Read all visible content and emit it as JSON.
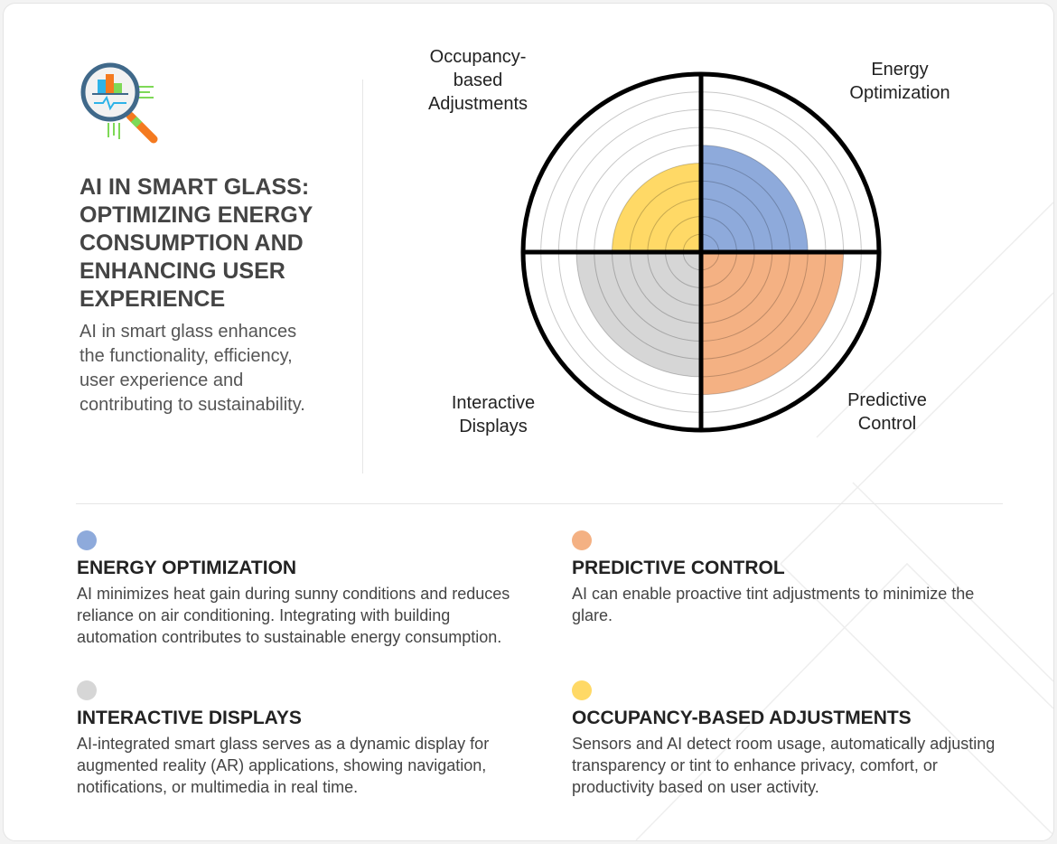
{
  "header": {
    "icon": "magnifier-chart-icon",
    "title": "AI IN SMART GLASS: OPTIMIZING ENERGY CONSUMPTION AND ENHANCING USER EXPERIENCE",
    "intro": "AI in smart glass enhances the functionality, efficiency, user experience and contributing to sustainability."
  },
  "chart_data": {
    "type": "polar-area",
    "rmax": 10,
    "rings": 10,
    "grid": true,
    "categories": [
      "Energy Optimization",
      "Predictive Control",
      "Interactive Displays",
      "Occupancy-based Adjustments"
    ],
    "values": [
      6,
      8,
      7,
      5
    ],
    "colors": [
      "#8eaadb",
      "#f4b183",
      "#d6d6d6",
      "#ffd966"
    ],
    "labels": {
      "energy": [
        "Energy",
        "Optimization"
      ],
      "predictive": [
        "Predictive",
        "Control"
      ],
      "interactive": [
        "Interactive",
        "Displays"
      ],
      "occupancy": [
        "Occupancy-",
        "based",
        "Adjustments"
      ]
    }
  },
  "items": [
    {
      "color": "#8eaadb",
      "title": "ENERGY OPTIMIZATION",
      "text": "AI minimizes heat gain during sunny conditions and reduces reliance on air conditioning. Integrating with building automation contributes to sustainable energy consumption."
    },
    {
      "color": "#f4b183",
      "title": "PREDICTIVE CONTROL",
      "text": " AI can enable proactive tint adjustments to minimize the glare."
    },
    {
      "color": "#d6d6d6",
      "title": "INTERACTIVE DISPLAYS",
      "text": "AI-integrated smart glass serves as a dynamic display for augmented reality (AR) applications, showing navigation, notifications, or multimedia in real time."
    },
    {
      "color": "#ffd966",
      "title": "OCCUPANCY-BASED ADJUSTMENTS",
      "text": "Sensors and AI detect room usage, automatically adjusting transparency or tint to enhance privacy, comfort, or productivity based on user activity."
    }
  ]
}
